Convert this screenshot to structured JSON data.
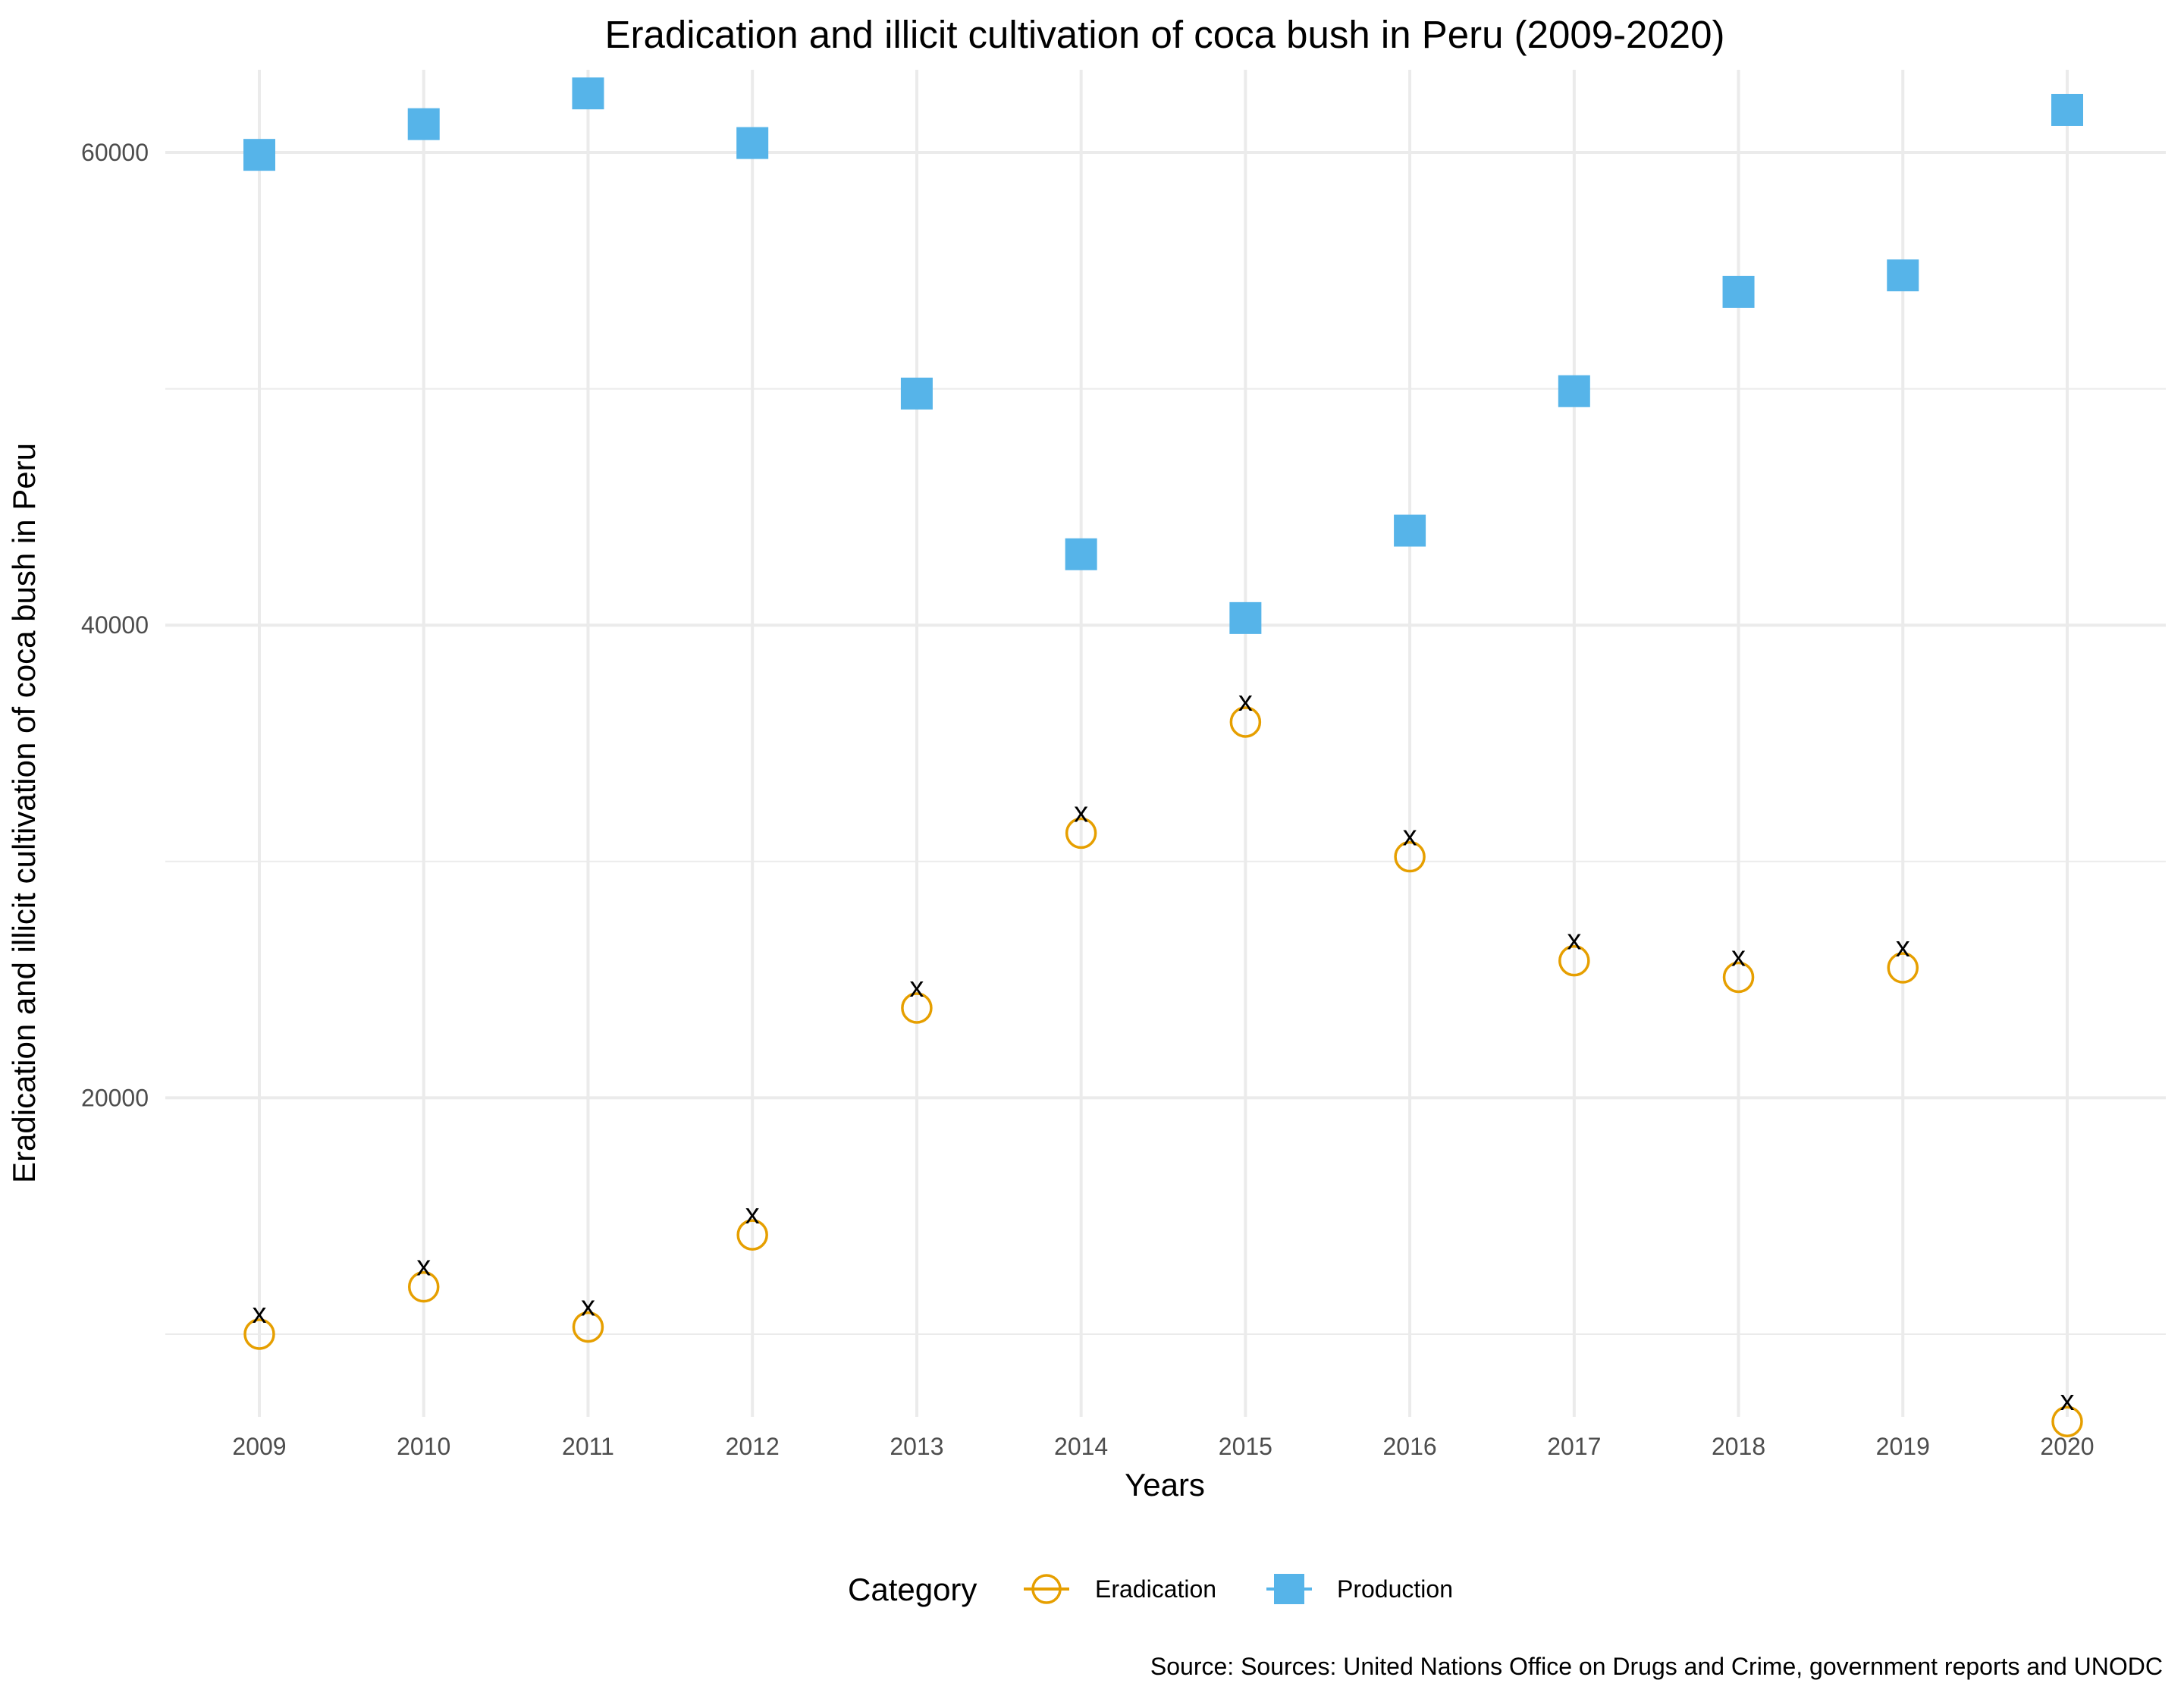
{
  "chart_data": {
    "type": "scatter",
    "title": "Eradication and illicit cultivation of coca bush in Peru (2009-2020)",
    "xlabel": "Years",
    "ylabel": "Eradication and illicit cultivation of coca bush in Peru",
    "categories": [
      "2009",
      "2010",
      "2011",
      "2012",
      "2013",
      "2014",
      "2015",
      "2016",
      "2017",
      "2018",
      "2019",
      "2020"
    ],
    "yticks": [
      "20000",
      "40000",
      "60000"
    ],
    "ylim": [
      6500,
      63500
    ],
    "grid": true,
    "series": [
      {
        "name": "Eradication",
        "marker": "open-circle",
        "color": "#E69F00",
        "values": [
          10000,
          12000,
          10300,
          14200,
          23800,
          31200,
          35900,
          30200,
          25800,
          25100,
          25500,
          6300
        ]
      },
      {
        "name": "Production",
        "marker": "filled-square",
        "color": "#56B4E9",
        "values": [
          59900,
          61200,
          62500,
          60400,
          49800,
          43000,
          40300,
          44000,
          49900,
          54100,
          54800,
          61800
        ]
      }
    ],
    "annotations": {
      "text": "x",
      "values": [
        10000,
        12000,
        10300,
        14200,
        23800,
        31200,
        35900,
        30200,
        25800,
        25100,
        25500,
        6300
      ]
    },
    "legend": {
      "title": "Category",
      "position": "bottom"
    },
    "caption": "Source: Sources: United Nations Office on Drugs and Crime, government reports and UNODC"
  }
}
